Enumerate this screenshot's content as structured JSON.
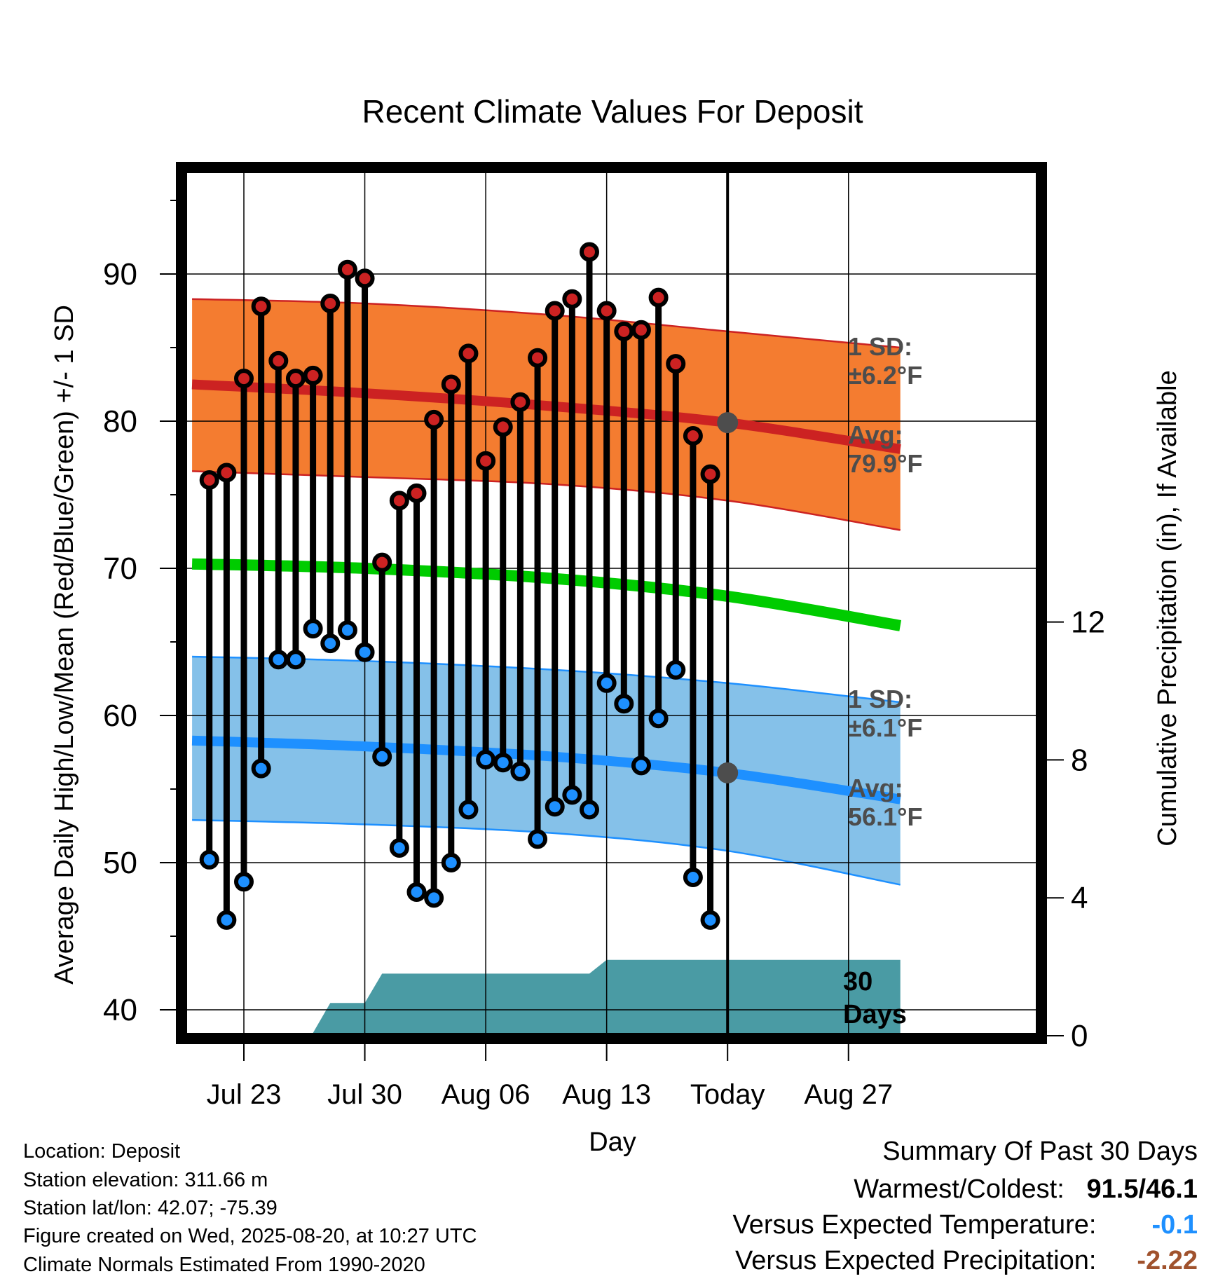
{
  "chart_data": {
    "type": "line",
    "title": "Recent Climate Values For Deposit",
    "xlabel": "Day",
    "ylabel": "Average Daily High/Low/Mean (Red/Blue/Green) +/- 1 SD",
    "y2label": "Cumulative Precipitation (in), If Available",
    "ylim": [
      38.5,
      96.8
    ],
    "y_ticks": [
      40,
      50,
      60,
      70,
      80,
      90
    ],
    "y2lim": [
      0,
      17.2
    ],
    "y2_ticks": [
      0,
      4,
      8,
      12
    ],
    "x_tick_labels": [
      {
        "date": "2025-07-23",
        "label": "Jul 23"
      },
      {
        "date": "2025-07-30",
        "label": "Jul 30"
      },
      {
        "date": "2025-08-06",
        "label": "Aug 06"
      },
      {
        "date": "2025-08-13",
        "label": "Aug 13"
      },
      {
        "date": "2025-08-20",
        "label": "Today"
      },
      {
        "date": "2025-08-27",
        "label": "Aug 27"
      }
    ],
    "x_range": [
      "2025-07-21",
      "2025-08-30"
    ],
    "grid": true,
    "daily": {
      "dates": [
        "2025-07-21",
        "2025-07-22",
        "2025-07-23",
        "2025-07-24",
        "2025-07-25",
        "2025-07-26",
        "2025-07-27",
        "2025-07-28",
        "2025-07-29",
        "2025-07-30",
        "2025-07-31",
        "2025-08-01",
        "2025-08-02",
        "2025-08-03",
        "2025-08-04",
        "2025-08-05",
        "2025-08-06",
        "2025-08-07",
        "2025-08-08",
        "2025-08-09",
        "2025-08-10",
        "2025-08-11",
        "2025-08-12",
        "2025-08-13",
        "2025-08-14",
        "2025-08-15",
        "2025-08-16",
        "2025-08-17",
        "2025-08-18",
        "2025-08-19"
      ],
      "high": [
        76.0,
        76.5,
        82.9,
        87.8,
        84.1,
        82.9,
        83.1,
        88.0,
        90.3,
        89.7,
        70.4,
        74.6,
        75.1,
        80.1,
        82.5,
        84.6,
        77.3,
        79.6,
        81.3,
        84.3,
        87.5,
        88.3,
        91.5,
        87.5,
        86.1,
        86.2,
        88.4,
        83.9,
        79.0,
        76.4
      ],
      "low": [
        50.2,
        46.1,
        48.7,
        56.4,
        63.8,
        63.8,
        65.9,
        64.9,
        65.8,
        64.3,
        57.2,
        51.0,
        48.0,
        47.6,
        50.0,
        53.6,
        57.0,
        56.8,
        56.2,
        51.6,
        53.8,
        54.6,
        53.6,
        62.2,
        60.8,
        56.6,
        59.8,
        63.1,
        49.0,
        46.1
      ]
    },
    "normals": {
      "dates": [
        "2025-07-20",
        "2025-07-30",
        "2025-08-10",
        "2025-08-20",
        "2025-08-30"
      ],
      "high_avg": [
        82.5,
        81.9,
        81.0,
        79.9,
        78.1
      ],
      "high_sd_upper": [
        88.3,
        88.0,
        87.2,
        86.1,
        85.0
      ],
      "high_sd_lower": [
        76.6,
        76.2,
        75.7,
        74.6,
        72.6
      ],
      "mean": [
        70.3,
        70.0,
        69.3,
        68.1,
        66.1
      ],
      "low_avg": [
        58.3,
        57.9,
        57.2,
        56.1,
        54.3
      ],
      "low_sd_upper": [
        64.0,
        63.7,
        63.1,
        62.2,
        60.9
      ],
      "low_sd_lower": [
        52.9,
        52.6,
        52.0,
        50.8,
        48.5
      ]
    },
    "precipitation": {
      "dates": [
        "2025-07-23",
        "2025-07-24",
        "2025-07-25",
        "2025-07-26",
        "2025-07-27",
        "2025-07-28",
        "2025-07-29",
        "2025-07-30",
        "2025-07-31",
        "2025-08-01",
        "2025-08-06",
        "2025-08-11",
        "2025-08-12",
        "2025-08-13",
        "2025-08-16",
        "2025-08-20",
        "2025-08-30"
      ],
      "cumulative": [
        0,
        0,
        0,
        0,
        0,
        0.95,
        0.95,
        0.95,
        1.8,
        1.8,
        1.8,
        1.8,
        1.8,
        2.2,
        2.2,
        2.2,
        2.2
      ]
    },
    "annotations": {
      "high_sd": "1 SD:",
      "high_sd_value": "±6.2°F",
      "high_avg": "Avg:",
      "high_avg_value": "79.9°F",
      "low_sd": "1 SD:",
      "low_sd_value": "±6.1°F",
      "low_avg": "Avg:",
      "low_avg_value": "56.1°F",
      "days_num": "30",
      "days_label": "Days"
    },
    "colors": {
      "high": "#cc2222",
      "high_band": "#f47c30",
      "low": "#1e90ff",
      "low_band": "#85c1e9",
      "mean": "#00cc00",
      "precip": "#4a9ba4",
      "marker_high": "#cc2222",
      "marker_low": "#1e90ff",
      "today_marker": "#4d4d4d"
    }
  },
  "info": {
    "location": "Location: Deposit",
    "elevation": "Station elevation: 311.66 m",
    "latlon": "Station lat/lon: 42.07; -75.39",
    "created": "Figure created on Wed, 2025-08-20, at 10:27 UTC",
    "normals": "Climate Normals Estimated From 1990-2020"
  },
  "summary": {
    "title": "Summary Of Past 30 Days",
    "warmest_label": "Warmest/Coldest:",
    "warmest_value": "91.5",
    "coldest_value": "46.1",
    "temp_label": "Versus Expected Temperature:",
    "temp_value": "-0.1",
    "temp_color": "#1e90ff",
    "precip_label": "Versus Expected Precipitation:",
    "precip_value": "-2.22",
    "precip_color": "#a0522d"
  }
}
